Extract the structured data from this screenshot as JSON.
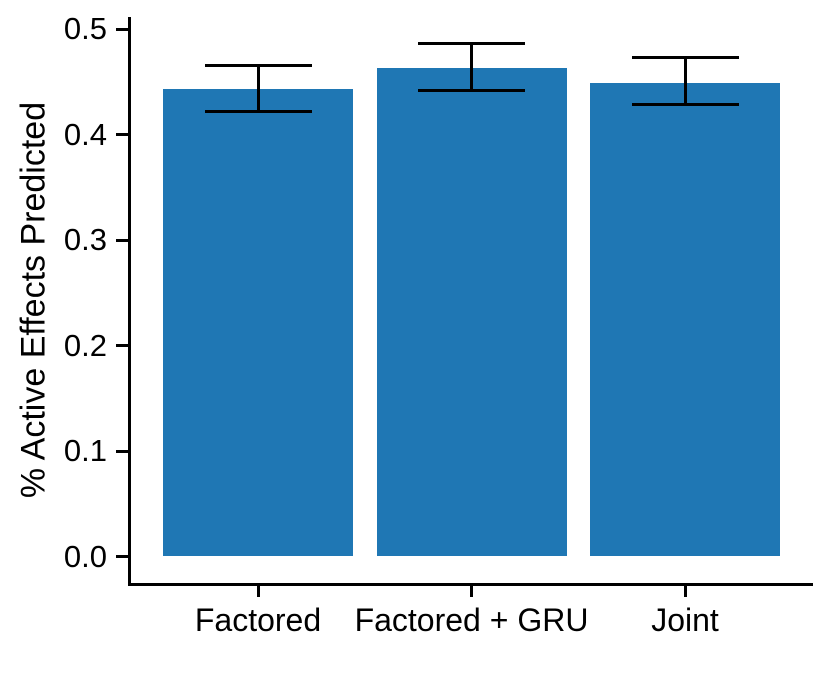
{
  "chart_data": {
    "type": "bar",
    "title": "",
    "xlabel": "",
    "ylabel": "% Active Effects Predicted",
    "categories": [
      "Factored",
      "Factored + GRU",
      "Joint"
    ],
    "values": [
      0.443,
      0.463,
      0.449
    ],
    "error_low": [
      0.422,
      0.442,
      0.428
    ],
    "error_high": [
      0.465,
      0.486,
      0.473
    ],
    "ylim": [
      0.0,
      0.5
    ],
    "yticks": [
      0.0,
      0.1,
      0.2,
      0.3,
      0.4,
      0.5
    ],
    "ytick_labels": [
      "0.0",
      "0.1",
      "0.2",
      "0.3",
      "0.4",
      "0.5"
    ],
    "bar_color": "#1f77b4",
    "error_color": "#000000",
    "axis_color": "#000000",
    "text_color": "#000000",
    "background_color": "#ffffff",
    "grid": "off",
    "legend": "none"
  }
}
